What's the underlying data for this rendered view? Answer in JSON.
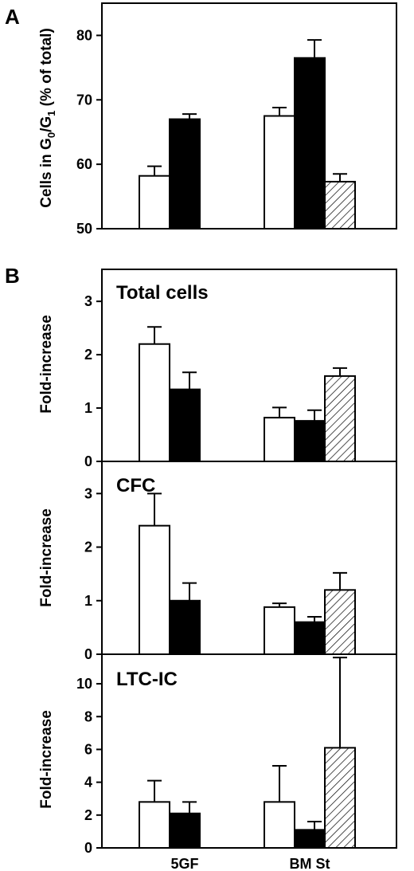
{
  "chart_data": [
    {
      "type": "bar",
      "panel_label": "A",
      "ylabel": "Cells in G0/G1 (% of total)",
      "ylabel_parts": {
        "pre": "Cells in G",
        "sub1": "0",
        "mid": "/G",
        "sub2": "1",
        "post": " (% of total)"
      },
      "ylim": [
        50,
        85
      ],
      "yticks": [
        50,
        60,
        70,
        80
      ],
      "groups": [
        {
          "bars": [
            {
              "fill": "white",
              "value": 58.2,
              "err": 1.5
            },
            {
              "fill": "black",
              "value": 67.0,
              "err": 0.8
            }
          ]
        },
        {
          "bars": [
            {
              "fill": "white",
              "value": 67.5,
              "err": 1.3
            },
            {
              "fill": "black",
              "value": 76.5,
              "err": 2.8
            },
            {
              "fill": "hatched",
              "value": 57.3,
              "err": 1.2
            }
          ]
        }
      ]
    },
    {
      "type": "bar",
      "panel_label": "B",
      "title": "Total cells",
      "ylabel": "Fold-increase",
      "ylim": [
        0,
        3.6
      ],
      "yticks": [
        0,
        1,
        2,
        3
      ],
      "groups": [
        {
          "bars": [
            {
              "fill": "white",
              "value": 2.2,
              "err": 0.32
            },
            {
              "fill": "black",
              "value": 1.35,
              "err": 0.32
            }
          ]
        },
        {
          "bars": [
            {
              "fill": "white",
              "value": 0.82,
              "err": 0.19
            },
            {
              "fill": "black",
              "value": 0.76,
              "err": 0.2
            },
            {
              "fill": "hatched",
              "value": 1.6,
              "err": 0.15
            }
          ]
        }
      ]
    },
    {
      "type": "bar",
      "title": "CFC",
      "ylabel": "Fold-increase",
      "ylim": [
        0,
        3.6
      ],
      "yticks": [
        0,
        1,
        2,
        3
      ],
      "groups": [
        {
          "bars": [
            {
              "fill": "white",
              "value": 2.4,
              "err": 0.6
            },
            {
              "fill": "black",
              "value": 1.0,
              "err": 0.33
            }
          ]
        },
        {
          "bars": [
            {
              "fill": "white",
              "value": 0.88,
              "err": 0.07
            },
            {
              "fill": "black",
              "value": 0.6,
              "err": 0.1
            },
            {
              "fill": "hatched",
              "value": 1.2,
              "err": 0.32
            }
          ]
        }
      ]
    },
    {
      "type": "bar",
      "title": "LTC-IC",
      "ylabel": "Fold-increase",
      "ylim": [
        0,
        11.8
      ],
      "yticks": [
        0,
        2,
        4,
        6,
        8,
        10
      ],
      "categories": [
        "5GF",
        "BM St"
      ],
      "groups": [
        {
          "bars": [
            {
              "fill": "white",
              "value": 2.8,
              "err": 1.3
            },
            {
              "fill": "black",
              "value": 2.1,
              "err": 0.7
            }
          ]
        },
        {
          "bars": [
            {
              "fill": "white",
              "value": 2.8,
              "err": 2.2
            },
            {
              "fill": "black",
              "value": 1.1,
              "err": 0.5
            },
            {
              "fill": "hatched",
              "value": 6.1,
              "err": 5.5
            }
          ]
        }
      ]
    }
  ]
}
